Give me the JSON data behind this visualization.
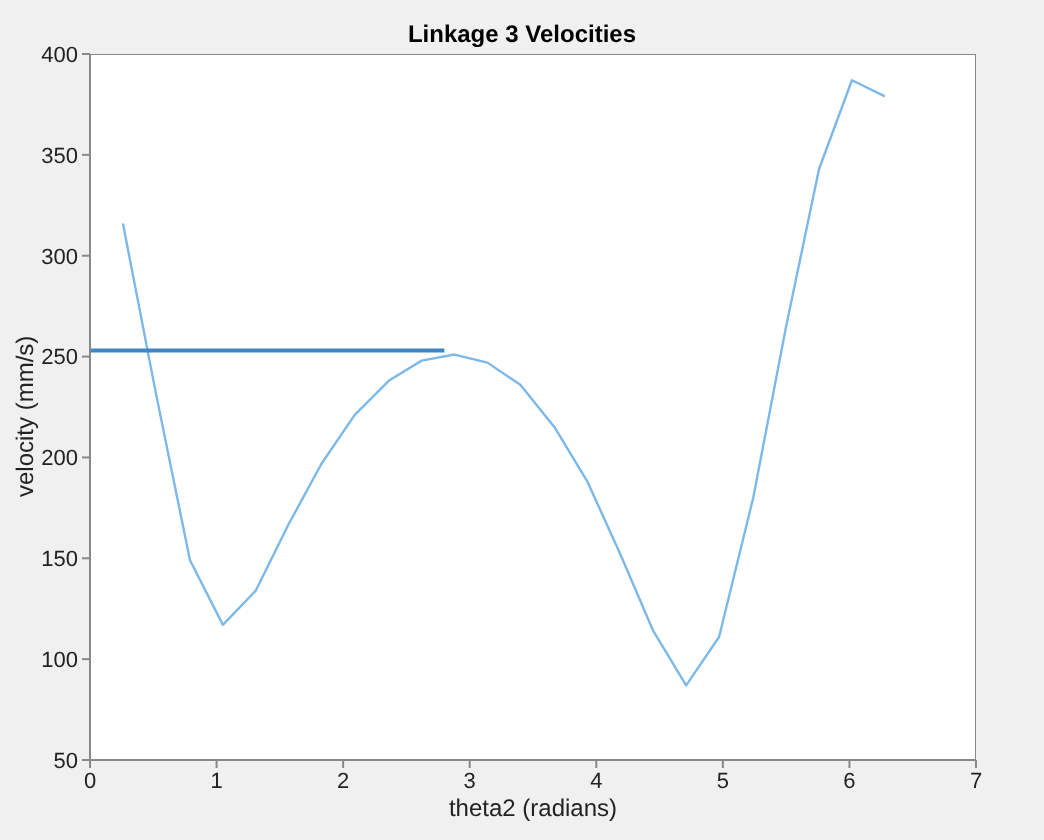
{
  "chart_data": {
    "type": "line",
    "title": "Linkage 3 Velocities",
    "xlabel": "theta2 (radians)",
    "ylabel": "velocity (mm/s)",
    "xlim": [
      0,
      7
    ],
    "xticks": [
      0,
      1,
      2,
      3,
      4,
      5,
      6,
      7
    ],
    "ylim": [
      50,
      400
    ],
    "yticks": [
      50,
      100,
      150,
      200,
      250,
      300,
      350,
      400
    ],
    "marker": "none",
    "line_style": "solid",
    "series": [
      {
        "color": "#7cb9e8",
        "x": [
          0.26,
          0.52,
          0.79,
          1.05,
          1.31,
          1.57,
          1.83,
          2.09,
          2.36,
          2.62,
          2.88,
          3.14,
          3.4,
          3.67,
          3.93,
          4.19,
          4.45,
          4.71,
          4.97,
          5.24,
          5.5,
          5.76,
          6.02,
          6.28
        ],
        "values": [
          316,
          232,
          149,
          117,
          134,
          167,
          197,
          221,
          238,
          248,
          251,
          247,
          236,
          215,
          188,
          152,
          114,
          87,
          111,
          180,
          265,
          343,
          387,
          379
        ]
      },
      {
        "color": "#3d85c6",
        "x": [
          0,
          2.8
        ],
        "values": [
          253,
          253
        ]
      }
    ]
  }
}
